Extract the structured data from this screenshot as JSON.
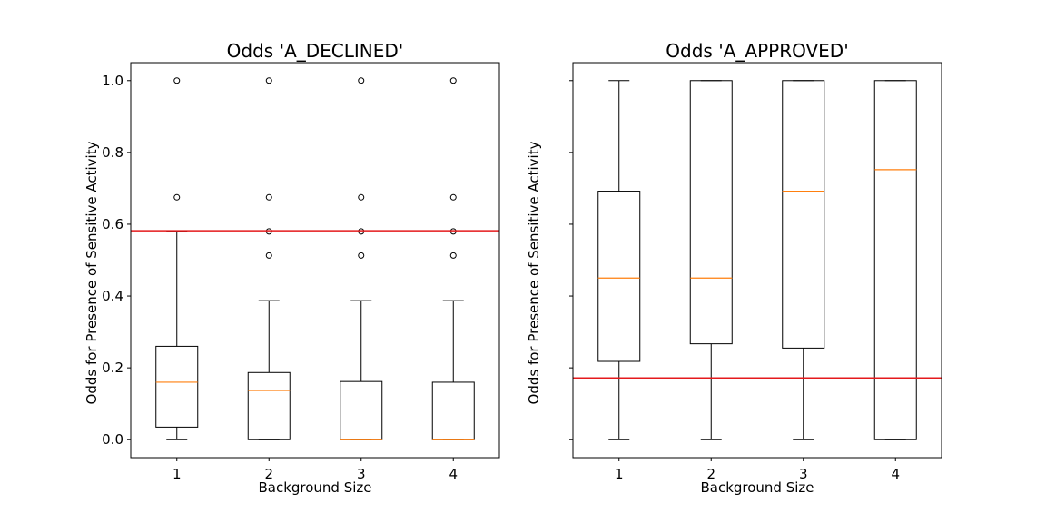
{
  "colors": {
    "median": "#ff7f0e",
    "reference_line": "#e41a1c",
    "box": "#000000"
  },
  "chart_data": [
    {
      "type": "boxplot",
      "title": "Odds 'A_DECLINED'",
      "xlabel": "Background Size",
      "ylabel": "Odds for Presence of Sensitive Activity",
      "ylim": [
        -0.05,
        1.05
      ],
      "yticks": [
        0.0,
        0.2,
        0.4,
        0.6,
        0.8,
        1.0
      ],
      "ytick_labels": [
        "0.0",
        "0.2",
        "0.4",
        "0.6",
        "0.8",
        "1.0"
      ],
      "show_ytick_labels": true,
      "categories": [
        "1",
        "2",
        "3",
        "4"
      ],
      "boxes": [
        {
          "whislo": 0.0,
          "q1": 0.035,
          "med": 0.16,
          "q3": 0.26,
          "whishi": 0.58,
          "fliers": [
            0.675,
            1.0
          ]
        },
        {
          "whislo": 0.0,
          "q1": 0.0,
          "med": 0.137,
          "q3": 0.187,
          "whishi": 0.387,
          "fliers": [
            0.513,
            0.58,
            0.675,
            1.0
          ]
        },
        {
          "whislo": 0.0,
          "q1": 0.0,
          "med": 0.0,
          "q3": 0.162,
          "whishi": 0.387,
          "fliers": [
            0.513,
            0.58,
            0.675,
            1.0
          ]
        },
        {
          "whislo": 0.0,
          "q1": 0.0,
          "med": 0.0,
          "q3": 0.16,
          "whishi": 0.387,
          "fliers": [
            0.513,
            0.58,
            0.675,
            1.0
          ]
        }
      ],
      "reference_line": 0.582
    },
    {
      "type": "boxplot",
      "title": "Odds 'A_APPROVED'",
      "xlabel": "Background Size",
      "ylabel": "Odds for Presence of Sensitive Activity",
      "ylim": [
        -0.05,
        1.05
      ],
      "yticks": [
        0.0,
        0.2,
        0.4,
        0.6,
        0.8,
        1.0
      ],
      "ytick_labels": [],
      "show_ytick_labels": false,
      "categories": [
        "1",
        "2",
        "3",
        "4"
      ],
      "boxes": [
        {
          "whislo": 0.0,
          "q1": 0.218,
          "med": 0.45,
          "q3": 0.692,
          "whishi": 1.0,
          "fliers": []
        },
        {
          "whislo": 0.0,
          "q1": 0.267,
          "med": 0.45,
          "q3": 1.0,
          "whishi": 1.0,
          "fliers": []
        },
        {
          "whislo": 0.0,
          "q1": 0.255,
          "med": 0.692,
          "q3": 1.0,
          "whishi": 1.0,
          "fliers": []
        },
        {
          "whislo": 0.0,
          "q1": 0.0,
          "med": 0.752,
          "q3": 1.0,
          "whishi": 1.0,
          "fliers": []
        }
      ],
      "reference_line": 0.172
    }
  ]
}
